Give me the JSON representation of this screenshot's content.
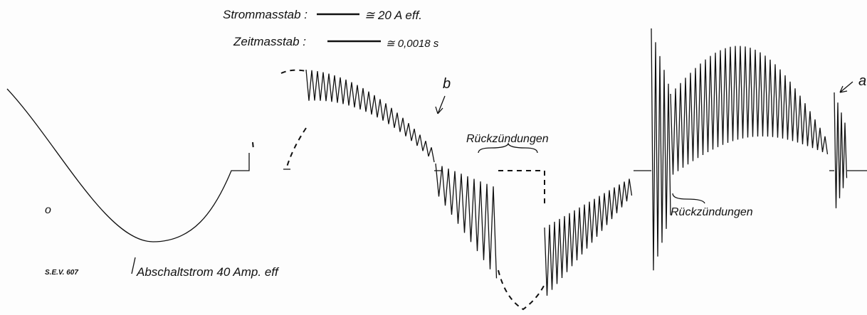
{
  "header": {
    "current_scale_label": "Strommasstab :",
    "current_scale_value": "≅ 20 A eff.",
    "time_scale_label": "Zeitmasstab :",
    "time_scale_value": "≅ 0,0018 s"
  },
  "annotations": {
    "b": "b",
    "restrike_1": "Rückzündungen",
    "restrike_2": "Rückzündungen",
    "a_right": "a",
    "o_left": "o",
    "breaking_current": "Abschaltstrom 40 Amp. eff"
  },
  "figure_number": "S.E.V. 607"
}
